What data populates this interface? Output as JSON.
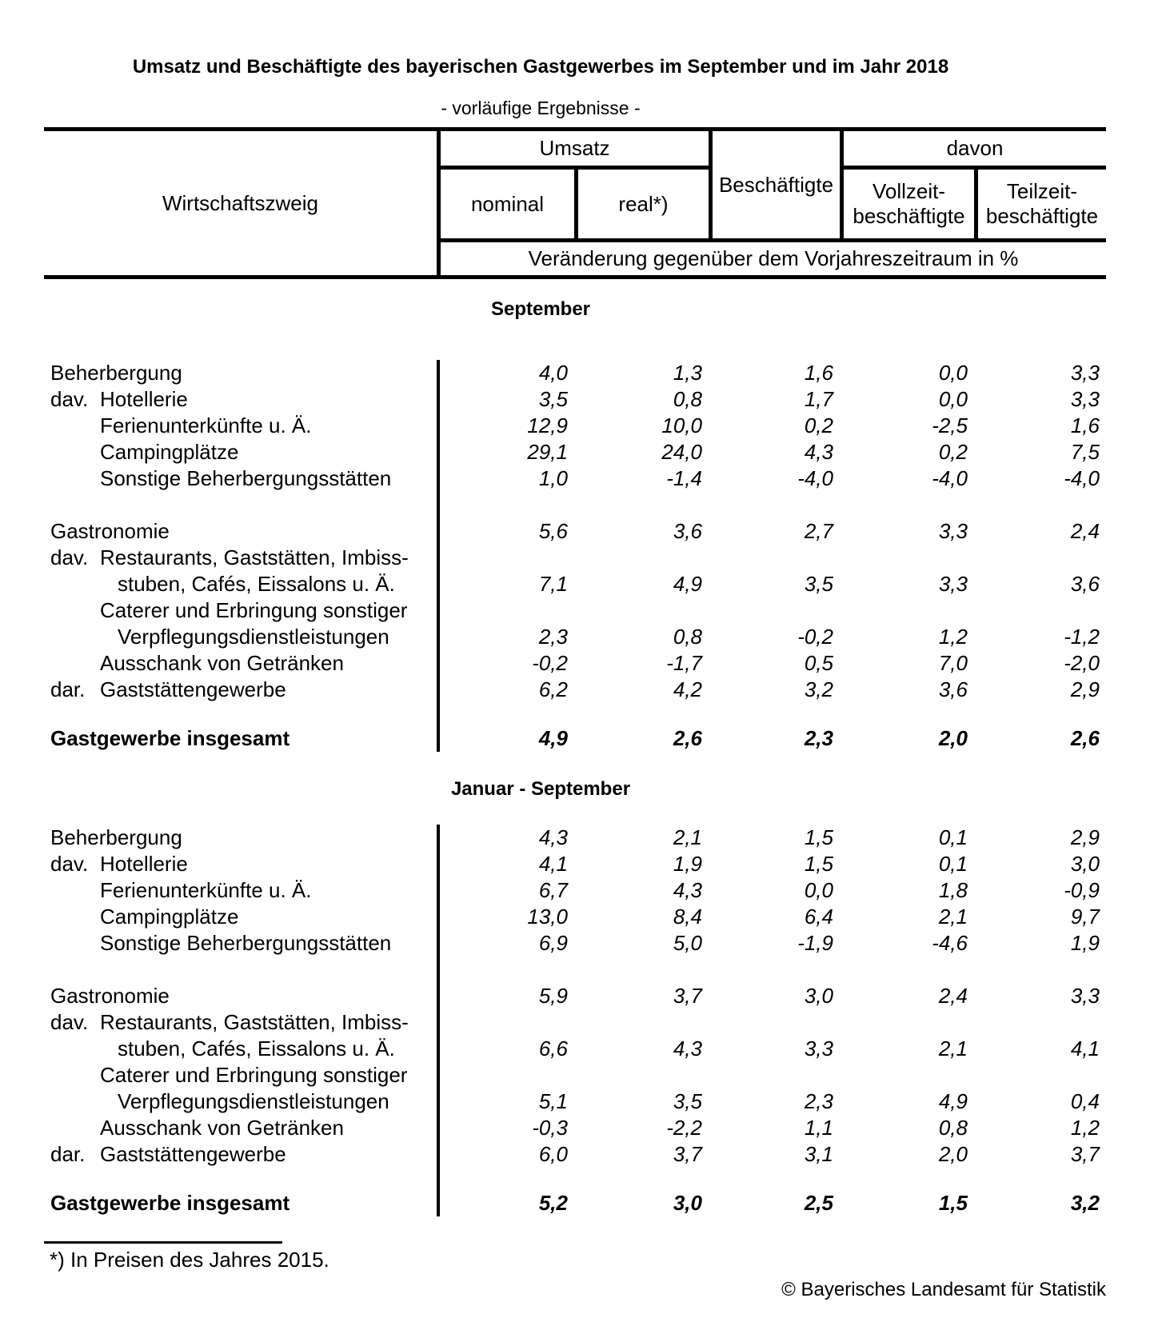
{
  "title": "Umsatz und Beschäftigte des bayerischen Gastgewerbes im September und im Jahr 2018",
  "subtitle": "- vorläufige Ergebnisse -",
  "header": {
    "wirtschaftszweig": "Wirtschaftszweig",
    "umsatz_group": "Umsatz",
    "nominal": "nominal",
    "real": "real*)",
    "beschaeftigte": "Beschäftigte",
    "davon_group": "davon",
    "vollzeit": "Vollzeit-beschäftigte",
    "teilzeit": "Teilzeit-beschäftigte",
    "unit_note": "Veränderung gegenüber dem Vorjahreszeitraum in %"
  },
  "sections": [
    {
      "heading": "September",
      "rows": [
        {
          "label": "Beherbergung",
          "indent": 0,
          "values": [
            "4,0",
            "1,3",
            "1,6",
            "0,0",
            "3,3"
          ]
        },
        {
          "prefix": "dav.",
          "label": "Hotellerie",
          "indent": 1,
          "values": [
            "3,5",
            "0,8",
            "1,7",
            "0,0",
            "3,3"
          ]
        },
        {
          "label": "Ferienunterkünfte u. Ä.",
          "indent": 1,
          "values": [
            "12,9",
            "10,0",
            "0,2",
            "-2,5",
            "1,6"
          ]
        },
        {
          "label": "Campingplätze",
          "indent": 1,
          "values": [
            "29,1",
            "24,0",
            "4,3",
            "0,2",
            "7,5"
          ]
        },
        {
          "label": "Sonstige Beherbergungsstätten",
          "indent": 1,
          "values": [
            "1,0",
            "-1,4",
            "-4,0",
            "-4,0",
            "-4,0"
          ]
        },
        {
          "spacer": 33
        },
        {
          "label": "Gastronomie",
          "indent": 0,
          "values": [
            "5,6",
            "3,6",
            "2,7",
            "3,3",
            "2,4"
          ]
        },
        {
          "prefix": "dav.",
          "label": "Restaurants, Gaststätten, Imbiss-",
          "indent": 1
        },
        {
          "label": "stuben, Cafés, Eissalons u. Ä.",
          "indent": 2,
          "values": [
            "7,1",
            "4,9",
            "3,5",
            "3,3",
            "3,6"
          ]
        },
        {
          "label": "Caterer und Erbringung sonstiger",
          "indent": 1
        },
        {
          "label": "Verpflegungsdienstleistungen",
          "indent": 2,
          "values": [
            "2,3",
            "0,8",
            "-0,2",
            "1,2",
            "-1,2"
          ]
        },
        {
          "label": "Ausschank von Getränken",
          "indent": 1,
          "values": [
            "-0,2",
            "-1,7",
            "0,5",
            "7,0",
            "-2,0"
          ]
        },
        {
          "prefix": "dar.",
          "label": "Gaststättengewerbe",
          "indent": 1,
          "values": [
            "6,2",
            "4,2",
            "3,2",
            "3,6",
            "2,9"
          ]
        },
        {
          "spacer": 28
        },
        {
          "label": "Gastgewerbe insgesamt",
          "indent": 0,
          "total": true,
          "values": [
            "4,9",
            "2,6",
            "2,3",
            "2,0",
            "2,6"
          ]
        }
      ]
    },
    {
      "heading": "Januar - September",
      "rows": [
        {
          "label": "Beherbergung",
          "indent": 0,
          "values": [
            "4,3",
            "2,1",
            "1,5",
            "0,1",
            "2,9"
          ]
        },
        {
          "prefix": "dav.",
          "label": "Hotellerie",
          "indent": 1,
          "values": [
            "4,1",
            "1,9",
            "1,5",
            "0,1",
            "3,0"
          ]
        },
        {
          "label": "Ferienunterkünfte u. Ä.",
          "indent": 1,
          "values": [
            "6,7",
            "4,3",
            "0,0",
            "1,8",
            "-0,9"
          ]
        },
        {
          "label": "Campingplätze",
          "indent": 1,
          "values": [
            "13,0",
            "8,4",
            "6,4",
            "2,1",
            "9,7"
          ]
        },
        {
          "label": "Sonstige Beherbergungsstätten",
          "indent": 1,
          "values": [
            "6,9",
            "5,0",
            "-1,9",
            "-4,6",
            "1,9"
          ]
        },
        {
          "spacer": 33
        },
        {
          "label": "Gastronomie",
          "indent": 0,
          "values": [
            "5,9",
            "3,7",
            "3,0",
            "2,4",
            "3,3"
          ]
        },
        {
          "prefix": "dav.",
          "label": "Restaurants, Gaststätten, Imbiss-",
          "indent": 1
        },
        {
          "label": "stuben, Cafés, Eissalons u. Ä.",
          "indent": 2,
          "values": [
            "6,6",
            "4,3",
            "3,3",
            "2,1",
            "4,1"
          ]
        },
        {
          "label": "Caterer und Erbringung sonstiger",
          "indent": 1
        },
        {
          "label": "Verpflegungsdienstleistungen",
          "indent": 2,
          "values": [
            "5,1",
            "3,5",
            "2,3",
            "4,9",
            "0,4"
          ]
        },
        {
          "label": "Ausschank von Getränken",
          "indent": 1,
          "values": [
            "-0,3",
            "-2,2",
            "1,1",
            "0,8",
            "1,2"
          ]
        },
        {
          "prefix": "dar.",
          "label": "Gaststättengewerbe",
          "indent": 1,
          "values": [
            "6,0",
            "3,7",
            "3,1",
            "2,0",
            "3,7"
          ]
        },
        {
          "spacer": 28
        },
        {
          "label": "Gastgewerbe insgesamt",
          "indent": 0,
          "total": true,
          "values": [
            "5,2",
            "3,0",
            "2,5",
            "1,5",
            "3,2"
          ]
        }
      ]
    }
  ],
  "footnote": "*) In Preisen des Jahres 2015.",
  "copyright": "© Bayerisches Landesamt für Statistik"
}
